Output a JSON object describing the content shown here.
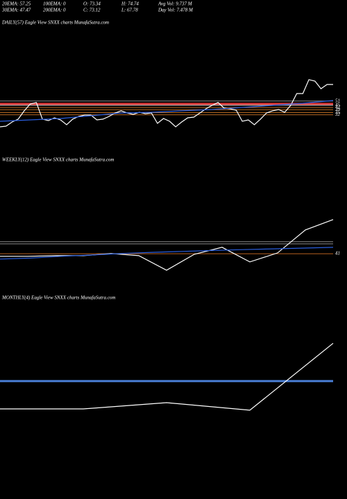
{
  "header": {
    "rows": [
      [
        "20EMA: 57.25",
        "100EMA: 0",
        "O: 73.34",
        "H: 74.74",
        "Avg Vol: 9.737 M"
      ],
      [
        "30EMA: 47.47",
        "200EMA: 0",
        "C: 73.12",
        "L: 67.78",
        "Day Vol: 7.478 M"
      ]
    ]
  },
  "chart_data": [
    {
      "type": "line",
      "title": "DAILY(57) Eagle View  SNXX charts MunafaSutra.com",
      "ylim": [
        0,
        180
      ],
      "yticks": [
        51,
        45,
        42,
        39,
        35,
        32
      ],
      "ytick_colors": [
        "#8a8a8a",
        "#8a8a8a",
        "#b86a22",
        "#b86a22",
        "#b86a22",
        "#b86a22"
      ],
      "hlines": [
        {
          "value": 47,
          "color": "#e03a3a",
          "width": 3
        },
        {
          "value": 45.5,
          "color": "#f0a8a8",
          "width": 1
        }
      ],
      "series": [
        {
          "color": "#ffffff",
          "values": [
            15.3,
            16.3,
            22,
            25.9,
            37.4,
            46.9,
            48.9,
            25.9,
            23.9,
            27.8,
            24.9,
            18.2,
            25.9,
            29.7,
            31.6,
            31.6,
            24.9,
            25.9,
            29.7,
            34.5,
            37.4,
            34.5,
            32.6,
            35.4,
            33.5,
            34.5,
            20.1,
            26.8,
            23,
            15.3,
            22,
            27.8,
            28.7,
            34.5,
            40.2,
            45,
            48.9,
            41.2,
            40.2,
            38.3,
            23,
            24.9,
            18.2,
            25.9,
            34.5,
            37.4,
            39.3,
            35.4,
            45,
            61.3,
            61.3,
            80.5,
            78.5,
            68,
            73.8,
            73.8
          ]
        },
        {
          "color": "#2a5fe0",
          "values": [
            23,
            24.9,
            26.8,
            30.6,
            34.5,
            35.4,
            37.4,
            39.3,
            42.1,
            45,
            47.9,
            51.7
          ]
        }
      ]
    },
    {
      "type": "line",
      "title": "WEEKLY(12) Eagle View  SNXX charts MunafaSutra.com",
      "ylim": [
        0,
        120
      ],
      "yticks": [
        41
      ],
      "ytick_colors": [
        "#b8621f"
      ],
      "hlines": [
        {
          "value": 52.3,
          "color": "#8a8a8a",
          "width": 1
        },
        {
          "value": 50.3,
          "color": "#8a8a8a",
          "width": 1
        }
      ],
      "series": [
        {
          "color": "#ffffff",
          "values": [
            38.6,
            38.6,
            39.2,
            39.2,
            41.2,
            39.2,
            25.5,
            40.5,
            47.1,
            33.3,
            41.8,
            63.4,
            73.2
          ]
        },
        {
          "color": "#2a5fe0",
          "values": [
            36,
            36.9,
            38.6,
            39.8,
            41.2,
            42.3,
            43.2,
            44.1,
            44.9,
            45.6,
            46.3,
            47
          ]
        }
      ]
    },
    {
      "type": "line",
      "title": "MONTHLY(4) Eagle View  SNXX charts MunafaSutra.com",
      "ylim": [
        0,
        80
      ],
      "yticks": [],
      "ytick_colors": [],
      "hlines": [
        {
          "value": 53.6,
          "color": "#4a7fd6",
          "width": 3
        }
      ],
      "series": [
        {
          "color": "#ffffff",
          "values": [
            39.3,
            39.3,
            42.5,
            38.6,
            73.12
          ]
        }
      ]
    }
  ]
}
